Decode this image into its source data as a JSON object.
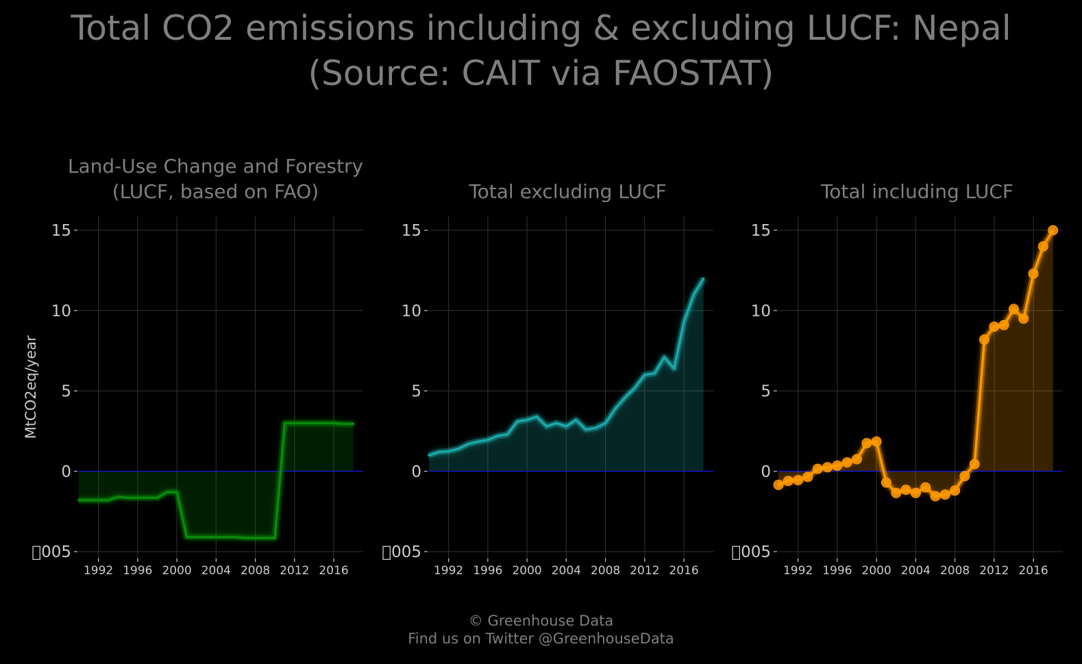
{
  "title": "Total CO2 emissions including & excluding LUCF: Nepal\n(Source: CAIT via FAOSTAT)",
  "caption": {
    "line1": "© Greenhouse Data",
    "line2": "Find us on Twitter @GreenhouseData"
  },
  "colors": {
    "background": "#000000",
    "text": "#7f7f7f",
    "tick_text": "#cccccc",
    "grid": "#2b2b2b",
    "zero_line": "#1515c8"
  },
  "chart_data": [
    {
      "type": "area",
      "title": "Land-Use Change and Forestry\n(LUCF, based on FAO)",
      "ylabel": "MtCO2eq/year",
      "xlabel": "",
      "color": "#0b8a0b",
      "markers": false,
      "xlim": [
        1990,
        2019
      ],
      "ylim": [
        -5,
        15
      ],
      "xticks": [
        1992,
        1996,
        2000,
        2004,
        2008,
        2012,
        2016
      ],
      "yticks": [
        -5,
        0,
        5,
        10,
        15
      ],
      "ytick_labels": [
        "\u0000005",
        "0",
        "5",
        "10",
        "15"
      ],
      "grid": true,
      "x": [
        1990,
        1991,
        1992,
        1993,
        1994,
        1995,
        1996,
        1997,
        1998,
        1999,
        2000,
        2001,
        2002,
        2003,
        2004,
        2005,
        2006,
        2007,
        2008,
        2009,
        2010,
        2011,
        2012,
        2013,
        2014,
        2015,
        2016,
        2017,
        2018
      ],
      "y": [
        -1.8,
        -1.8,
        -1.8,
        -1.8,
        -1.6,
        -1.65,
        -1.65,
        -1.65,
        -1.65,
        -1.3,
        -1.3,
        -4.1,
        -4.1,
        -4.1,
        -4.1,
        -4.1,
        -4.1,
        -4.15,
        -4.15,
        -4.15,
        -4.15,
        3.0,
        3.0,
        3.0,
        3.0,
        3.0,
        3.0,
        2.95,
        2.95
      ]
    },
    {
      "type": "area",
      "title": "Total excluding LUCF",
      "ylabel": "",
      "xlabel": "",
      "color": "#1aa8a8",
      "markers": false,
      "xlim": [
        1990,
        2019
      ],
      "ylim": [
        -5,
        15
      ],
      "xticks": [
        1992,
        1996,
        2000,
        2004,
        2008,
        2012,
        2016
      ],
      "yticks": [
        -5,
        0,
        5,
        10,
        15
      ],
      "ytick_labels": [
        "\u0000005",
        "0",
        "5",
        "10",
        "15"
      ],
      "grid": true,
      "x": [
        1990,
        1991,
        1992,
        1993,
        1994,
        1995,
        1996,
        1997,
        1998,
        1999,
        2000,
        2001,
        2002,
        2003,
        2004,
        2005,
        2006,
        2007,
        2008,
        2009,
        2010,
        2011,
        2012,
        2013,
        2014,
        2015,
        2016,
        2017,
        2018
      ],
      "y": [
        1.0,
        1.2,
        1.25,
        1.4,
        1.7,
        1.85,
        1.95,
        2.2,
        2.3,
        3.1,
        3.2,
        3.4,
        2.8,
        3.0,
        2.8,
        3.2,
        2.6,
        2.7,
        3.0,
        3.9,
        4.6,
        5.2,
        6.0,
        6.1,
        7.1,
        6.4,
        9.3,
        11.0,
        12.0
      ]
    },
    {
      "type": "line",
      "title": "Total including LUCF",
      "ylabel": "",
      "xlabel": "",
      "color": "#ff9900",
      "markers": true,
      "xlim": [
        1990,
        2019
      ],
      "ylim": [
        -5,
        15
      ],
      "xticks": [
        1992,
        1996,
        2000,
        2004,
        2008,
        2012,
        2016
      ],
      "yticks": [
        -5,
        0,
        5,
        10,
        15
      ],
      "ytick_labels": [
        "\u0000005",
        "0",
        "5",
        "10",
        "15"
      ],
      "grid": true,
      "x": [
        1990,
        1991,
        1992,
        1993,
        1994,
        1995,
        1996,
        1997,
        1998,
        1999,
        2000,
        2001,
        2002,
        2003,
        2004,
        2005,
        2006,
        2007,
        2008,
        2009,
        2010,
        2011,
        2012,
        2013,
        2014,
        2015,
        2016,
        2017,
        2018
      ],
      "y": [
        -0.85,
        -0.6,
        -0.55,
        -0.35,
        0.15,
        0.25,
        0.35,
        0.55,
        0.75,
        1.75,
        1.85,
        -0.7,
        -1.35,
        -1.15,
        -1.35,
        -1.0,
        -1.55,
        -1.45,
        -1.2,
        -0.3,
        0.45,
        8.2,
        9.0,
        9.1,
        10.1,
        9.5,
        12.3,
        14.0,
        15.0
      ]
    }
  ]
}
